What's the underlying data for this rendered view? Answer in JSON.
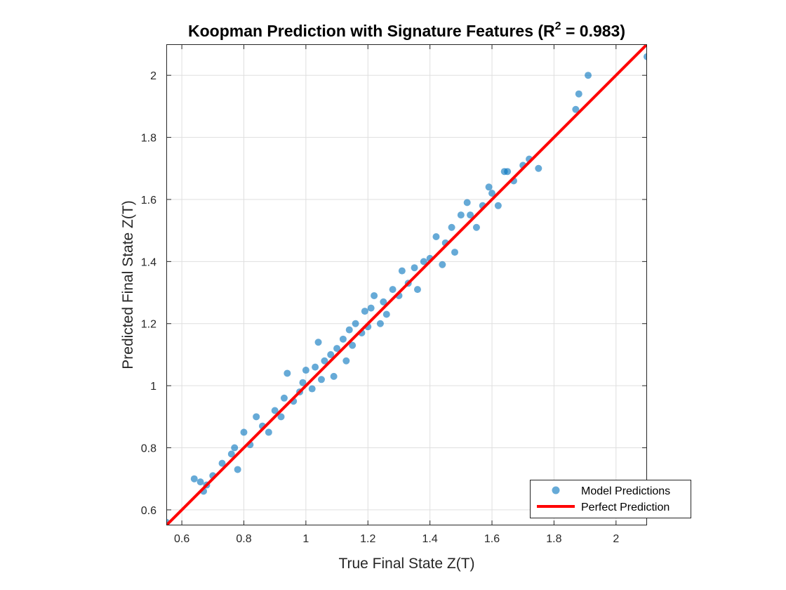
{
  "chart_data": {
    "type": "scatter",
    "title_main": "Koopman Prediction with Signature Features (R",
    "title_sup": "2",
    "title_end": " = 0.983)",
    "xlabel": "True Final State Z(T)",
    "ylabel": "Predicted Final State Z(T)",
    "xlim": [
      0.55,
      2.1
    ],
    "ylim": [
      0.55,
      2.1
    ],
    "xticks": [
      0.6,
      0.8,
      1,
      1.2,
      1.4,
      1.6,
      1.8,
      2
    ],
    "xtick_labels": [
      "0.6",
      "0.8",
      "1",
      "1.2",
      "1.4",
      "1.6",
      "1.8",
      "2"
    ],
    "yticks": [
      0.6,
      0.8,
      1,
      1.2,
      1.4,
      1.6,
      1.8,
      2
    ],
    "ytick_labels": [
      "0.6",
      "0.8",
      "1",
      "1.2",
      "1.4",
      "1.6",
      "1.8",
      "2"
    ],
    "grid": true,
    "legend_position": "bottom-right",
    "series": [
      {
        "name": "Model Predictions",
        "kind": "scatter",
        "color": "#0072BD",
        "points": [
          [
            0.55,
            0.56
          ],
          [
            0.64,
            0.7
          ],
          [
            0.66,
            0.69
          ],
          [
            0.67,
            0.66
          ],
          [
            0.68,
            0.68
          ],
          [
            0.7,
            0.71
          ],
          [
            0.73,
            0.75
          ],
          [
            0.76,
            0.78
          ],
          [
            0.77,
            0.8
          ],
          [
            0.78,
            0.73
          ],
          [
            0.8,
            0.85
          ],
          [
            0.82,
            0.81
          ],
          [
            0.84,
            0.9
          ],
          [
            0.86,
            0.87
          ],
          [
            0.88,
            0.85
          ],
          [
            0.9,
            0.92
          ],
          [
            0.92,
            0.9
          ],
          [
            0.93,
            0.96
          ],
          [
            0.94,
            1.04
          ],
          [
            0.96,
            0.95
          ],
          [
            0.98,
            0.98
          ],
          [
            0.99,
            1.01
          ],
          [
            1.0,
            1.05
          ],
          [
            1.02,
            0.99
          ],
          [
            1.03,
            1.06
          ],
          [
            1.04,
            1.14
          ],
          [
            1.05,
            1.02
          ],
          [
            1.06,
            1.08
          ],
          [
            1.08,
            1.1
          ],
          [
            1.09,
            1.03
          ],
          [
            1.1,
            1.12
          ],
          [
            1.12,
            1.15
          ],
          [
            1.13,
            1.08
          ],
          [
            1.14,
            1.18
          ],
          [
            1.15,
            1.13
          ],
          [
            1.16,
            1.2
          ],
          [
            1.18,
            1.17
          ],
          [
            1.19,
            1.24
          ],
          [
            1.2,
            1.19
          ],
          [
            1.21,
            1.25
          ],
          [
            1.22,
            1.29
          ],
          [
            1.24,
            1.2
          ],
          [
            1.25,
            1.27
          ],
          [
            1.26,
            1.23
          ],
          [
            1.28,
            1.31
          ],
          [
            1.3,
            1.29
          ],
          [
            1.31,
            1.37
          ],
          [
            1.33,
            1.33
          ],
          [
            1.35,
            1.38
          ],
          [
            1.36,
            1.31
          ],
          [
            1.38,
            1.4
          ],
          [
            1.4,
            1.41
          ],
          [
            1.42,
            1.48
          ],
          [
            1.44,
            1.39
          ],
          [
            1.45,
            1.46
          ],
          [
            1.47,
            1.51
          ],
          [
            1.48,
            1.43
          ],
          [
            1.5,
            1.55
          ],
          [
            1.52,
            1.59
          ],
          [
            1.53,
            1.55
          ],
          [
            1.55,
            1.51
          ],
          [
            1.57,
            1.58
          ],
          [
            1.59,
            1.64
          ],
          [
            1.6,
            1.62
          ],
          [
            1.62,
            1.58
          ],
          [
            1.64,
            1.69
          ],
          [
            1.65,
            1.69
          ],
          [
            1.67,
            1.66
          ],
          [
            1.7,
            1.71
          ],
          [
            1.72,
            1.73
          ],
          [
            1.75,
            1.7
          ],
          [
            1.87,
            1.89
          ],
          [
            1.88,
            1.94
          ],
          [
            1.91,
            2.0
          ],
          [
            2.1,
            2.06
          ]
        ]
      },
      {
        "name": "Perfect Prediction",
        "kind": "line",
        "color": "#FF0000",
        "points": [
          [
            0.55,
            0.55
          ],
          [
            2.1,
            2.1
          ]
        ]
      }
    ]
  }
}
